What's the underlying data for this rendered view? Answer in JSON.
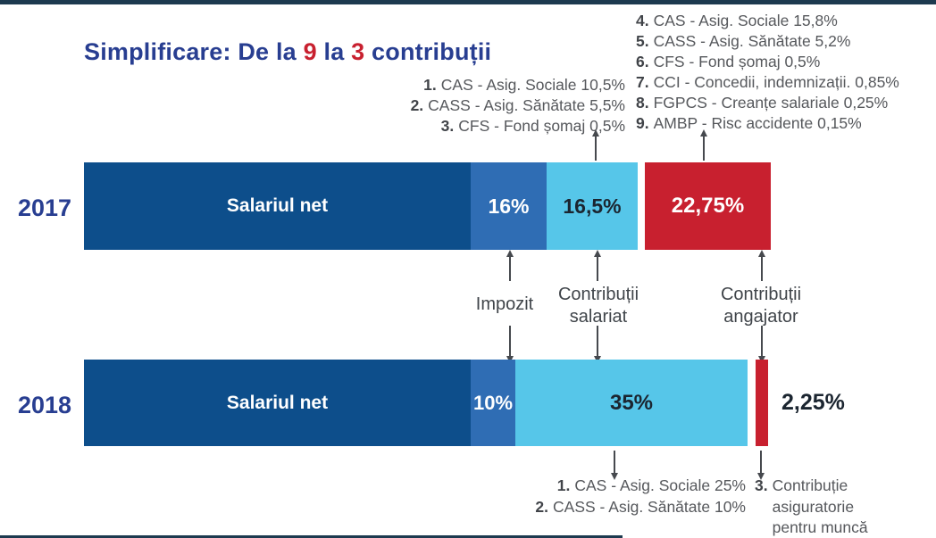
{
  "title": {
    "part1": "Simplificare: De la ",
    "num_from": "9",
    "part2": " la ",
    "num_to": "3",
    "part3": " contribuții"
  },
  "colors": {
    "navy_text": "#283e91",
    "bar_dark_blue": "#0d4e8b",
    "bar_medium_blue": "#2f6db4",
    "bar_light_blue": "#56c6e9",
    "bar_red": "#c8202f",
    "annotation_gray": "#56585c",
    "dark_value_text": "#1b2530",
    "top_border": "#1d3a4f"
  },
  "chart_data": {
    "type": "bar",
    "orientation": "horizontal_stacked",
    "title": "Simplificare: De la 9 la 3 contribuții",
    "categories": [
      "2017",
      "2018"
    ],
    "series": [
      {
        "name": "Salariul net",
        "labels": [
          "Salariul net",
          "Salariul net"
        ],
        "color": "#0d4e8b"
      },
      {
        "name": "Impozit",
        "values": [
          16,
          10
        ],
        "labels": [
          "16%",
          "10%"
        ],
        "color": "#2f6db4"
      },
      {
        "name": "Contribuții salariat",
        "values": [
          16.5,
          35
        ],
        "labels": [
          "16,5%",
          "35%"
        ],
        "color": "#56c6e9"
      },
      {
        "name": "Contribuții angajator",
        "values": [
          22.75,
          2.25
        ],
        "labels": [
          "22,75%",
          "2,25%"
        ],
        "color": "#c8202f"
      }
    ],
    "legend_position": "between-bars-arrow-labels",
    "grid": false,
    "notes": "2018 angajator segment is too thin for an inside label; 2,25% is printed to the right of the bar"
  },
  "bars": {
    "y2017": {
      "year": "2017",
      "net": "Salariul net",
      "impozit": "16%",
      "salariat": "16,5%",
      "angajator": "22,75%"
    },
    "y2018": {
      "year": "2018",
      "net": "Salariul net",
      "impozit": "10%",
      "salariat": "35%",
      "angajator": "2,25%"
    }
  },
  "flow_labels": {
    "impozit": "Impozit",
    "salariat_l1": "Contribuții",
    "salariat_l2": "salariat",
    "angajator_l1": "Contribuții",
    "angajator_l2": "angajator"
  },
  "annotations": {
    "employer_2017": [
      {
        "num": "4.",
        "text": "CAS - Asig. Sociale 15,8%"
      },
      {
        "num": "5.",
        "text": "CASS - Asig. Sănătate 5,2%"
      },
      {
        "num": "6.",
        "text": "CFS - Fond șomaj 0,5%"
      },
      {
        "num": "7.",
        "text": "CCI - Concedii, indemnizații. 0,85%"
      },
      {
        "num": "8.",
        "text": "FGPCS - Creanțe salariale 0,25%"
      },
      {
        "num": "9.",
        "text": "AMBP - Risc accidente 0,15%"
      }
    ],
    "employee_2017": [
      {
        "num": "1.",
        "text": "CAS - Asig. Sociale 10,5%"
      },
      {
        "num": "2.",
        "text": "CASS - Asig. Sănătate 5,5%"
      },
      {
        "num": "3.",
        "text": "CFS - Fond șomaj 0,5%"
      }
    ],
    "employee_2018": [
      {
        "num": "1.",
        "text": "CAS - Asig. Sociale 25%"
      },
      {
        "num": "2.",
        "text": "CASS - Asig. Sănătate 10%"
      }
    ],
    "employer_2018": {
      "num": "3.",
      "lines": [
        "Contribuție",
        "asiguratorie",
        "pentru muncă"
      ]
    }
  }
}
